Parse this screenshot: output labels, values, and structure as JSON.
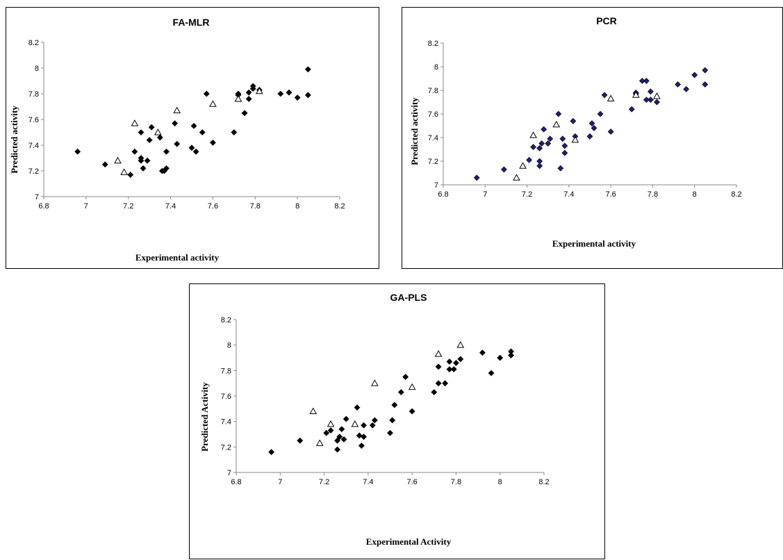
{
  "chart_data": [
    {
      "type": "scatter",
      "title": "FA-MLR",
      "xlabel": "Experimental activity",
      "ylabel": "Predicted activity",
      "xlim": [
        6.8,
        8.2
      ],
      "ylim": [
        7,
        8.2
      ],
      "xticks": [
        "6.8",
        "7",
        "7.2",
        "7.4",
        "7.6",
        "7.8",
        "8",
        "8.2"
      ],
      "yticks": [
        "7",
        "7.2",
        "7.4",
        "7.6",
        "7.8",
        "8",
        "8.2"
      ],
      "grid": false,
      "series": [
        {
          "marker": "filled-diamond",
          "color": "#000000",
          "points": [
            [
              6.96,
              7.35
            ],
            [
              7.09,
              7.25
            ],
            [
              7.21,
              7.17
            ],
            [
              7.23,
              7.35
            ],
            [
              7.26,
              7.3
            ],
            [
              7.26,
              7.28
            ],
            [
              7.26,
              7.5
            ],
            [
              7.27,
              7.22
            ],
            [
              7.29,
              7.28
            ],
            [
              7.3,
              7.44
            ],
            [
              7.31,
              7.54
            ],
            [
              7.35,
              7.46
            ],
            [
              7.36,
              7.2
            ],
            [
              7.37,
              7.2
            ],
            [
              7.38,
              7.22
            ],
            [
              7.38,
              7.35
            ],
            [
              7.42,
              7.57
            ],
            [
              7.43,
              7.41
            ],
            [
              7.5,
              7.38
            ],
            [
              7.51,
              7.55
            ],
            [
              7.52,
              7.35
            ],
            [
              7.55,
              7.5
            ],
            [
              7.57,
              7.8
            ],
            [
              7.6,
              7.42
            ],
            [
              7.7,
              7.5
            ],
            [
              7.72,
              7.8
            ],
            [
              7.72,
              7.79
            ],
            [
              7.75,
              7.65
            ],
            [
              7.77,
              7.76
            ],
            [
              7.77,
              7.81
            ],
            [
              7.79,
              7.84
            ],
            [
              7.79,
              7.86
            ],
            [
              7.82,
              7.83
            ],
            [
              7.92,
              7.8
            ],
            [
              7.96,
              7.81
            ],
            [
              8.0,
              7.77
            ],
            [
              8.05,
              7.79
            ],
            [
              8.05,
              7.99
            ]
          ]
        },
        {
          "marker": "open-triangle",
          "color": "#000000",
          "points": [
            [
              7.15,
              7.28
            ],
            [
              7.18,
              7.19
            ],
            [
              7.23,
              7.57
            ],
            [
              7.34,
              7.5
            ],
            [
              7.43,
              7.67
            ],
            [
              7.6,
              7.72
            ],
            [
              7.72,
              7.76
            ],
            [
              7.82,
              7.82
            ]
          ]
        }
      ]
    },
    {
      "type": "scatter",
      "title": "PCR",
      "xlabel": "Experimental activity",
      "ylabel": "Predicted activity",
      "xlim": [
        6.8,
        8.2
      ],
      "ylim": [
        7,
        8.2
      ],
      "xticks": [
        "6.8",
        "7",
        "7.2",
        "7.4",
        "7.6",
        "7.8",
        "8",
        "8.2"
      ],
      "yticks": [
        "7",
        "7.2",
        "7.4",
        "7.6",
        "7.8",
        "8",
        "8.2"
      ],
      "grid": false,
      "series": [
        {
          "marker": "filled-diamond",
          "color": "#1f1f6e",
          "points": [
            [
              6.96,
              7.06
            ],
            [
              7.09,
              7.13
            ],
            [
              7.21,
              7.21
            ],
            [
              7.23,
              7.32
            ],
            [
              7.26,
              7.16
            ],
            [
              7.26,
              7.2
            ],
            [
              7.26,
              7.31
            ],
            [
              7.27,
              7.35
            ],
            [
              7.28,
              7.47
            ],
            [
              7.3,
              7.35
            ],
            [
              7.31,
              7.39
            ],
            [
              7.35,
              7.6
            ],
            [
              7.36,
              7.14
            ],
            [
              7.37,
              7.39
            ],
            [
              7.38,
              7.27
            ],
            [
              7.38,
              7.33
            ],
            [
              7.42,
              7.54
            ],
            [
              7.43,
              7.41
            ],
            [
              7.5,
              7.41
            ],
            [
              7.51,
              7.52
            ],
            [
              7.52,
              7.48
            ],
            [
              7.55,
              7.6
            ],
            [
              7.57,
              7.76
            ],
            [
              7.6,
              7.45
            ],
            [
              7.7,
              7.64
            ],
            [
              7.72,
              7.77
            ],
            [
              7.72,
              7.78
            ],
            [
              7.75,
              7.88
            ],
            [
              7.77,
              7.72
            ],
            [
              7.77,
              7.88
            ],
            [
              7.79,
              7.72
            ],
            [
              7.79,
              7.79
            ],
            [
              7.82,
              7.7
            ],
            [
              7.92,
              7.85
            ],
            [
              7.96,
              7.81
            ],
            [
              8.0,
              7.93
            ],
            [
              8.05,
              7.85
            ],
            [
              8.05,
              7.97
            ]
          ]
        },
        {
          "marker": "open-triangle",
          "color": "#000000",
          "points": [
            [
              7.15,
              7.06
            ],
            [
              7.18,
              7.16
            ],
            [
              7.23,
              7.42
            ],
            [
              7.34,
              7.51
            ],
            [
              7.43,
              7.38
            ],
            [
              7.6,
              7.73
            ],
            [
              7.72,
              7.76
            ],
            [
              7.82,
              7.75
            ]
          ]
        }
      ]
    },
    {
      "type": "scatter",
      "title": "GA-PLS",
      "xlabel": "Experimental Activity",
      "ylabel": "Predicted Activity",
      "xlim": [
        6.8,
        8.2
      ],
      "ylim": [
        7,
        8.2
      ],
      "xticks": [
        "6.8",
        "7",
        "7.2",
        "7.4",
        "7.6",
        "7.8",
        "8",
        "8.2"
      ],
      "yticks": [
        "7",
        "7.2",
        "7.4",
        "7.6",
        "7.8",
        "8",
        "8.2"
      ],
      "grid": false,
      "series": [
        {
          "marker": "filled-diamond",
          "color": "#000000",
          "points": [
            [
              6.96,
              7.16
            ],
            [
              7.09,
              7.25
            ],
            [
              7.21,
              7.31
            ],
            [
              7.23,
              7.33
            ],
            [
              7.26,
              7.18
            ],
            [
              7.26,
              7.25
            ],
            [
              7.27,
              7.28
            ],
            [
              7.28,
              7.34
            ],
            [
              7.29,
              7.26
            ],
            [
              7.3,
              7.42
            ],
            [
              7.35,
              7.51
            ],
            [
              7.36,
              7.29
            ],
            [
              7.37,
              7.21
            ],
            [
              7.38,
              7.28
            ],
            [
              7.38,
              7.37
            ],
            [
              7.42,
              7.37
            ],
            [
              7.43,
              7.41
            ],
            [
              7.5,
              7.31
            ],
            [
              7.51,
              7.41
            ],
            [
              7.52,
              7.53
            ],
            [
              7.55,
              7.63
            ],
            [
              7.57,
              7.75
            ],
            [
              7.6,
              7.48
            ],
            [
              7.7,
              7.63
            ],
            [
              7.72,
              7.7
            ],
            [
              7.72,
              7.83
            ],
            [
              7.75,
              7.7
            ],
            [
              7.77,
              7.81
            ],
            [
              7.77,
              7.87
            ],
            [
              7.79,
              7.81
            ],
            [
              7.8,
              7.86
            ],
            [
              7.82,
              7.89
            ],
            [
              7.92,
              7.94
            ],
            [
              7.96,
              7.78
            ],
            [
              8.0,
              7.9
            ],
            [
              8.05,
              7.92
            ],
            [
              8.05,
              7.95
            ]
          ]
        },
        {
          "marker": "open-triangle",
          "color": "#000000",
          "points": [
            [
              7.15,
              7.48
            ],
            [
              7.18,
              7.23
            ],
            [
              7.23,
              7.38
            ],
            [
              7.34,
              7.38
            ],
            [
              7.43,
              7.7
            ],
            [
              7.6,
              7.67
            ],
            [
              7.72,
              7.93
            ],
            [
              7.82,
              8.0
            ]
          ]
        }
      ]
    }
  ]
}
